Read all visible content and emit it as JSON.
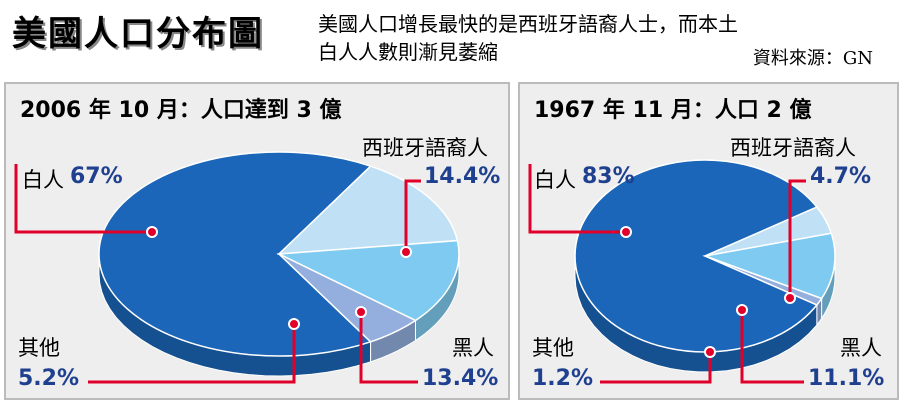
{
  "header": {
    "title": "美國人口分布圖",
    "subtitle_line1": "美國人口增長最快的是西班牙語裔人士，而本土",
    "subtitle_line2": "白人人數則漸見萎縮",
    "source": "資料來源：GN"
  },
  "colors": {
    "white": "#1b66b8",
    "hispanic": "#bfe0f5",
    "black": "#7fcaf0",
    "other": "#94aede",
    "leader": "#e0002a",
    "percent_text": "#1f3f8f"
  },
  "chart_data": [
    {
      "type": "pie",
      "title": "2006 年 10 月：人口達到 3 億",
      "slices": [
        {
          "name": "白人",
          "value": 67,
          "label": "67%"
        },
        {
          "name": "西班牙語裔人",
          "value": 14.4,
          "label": "14.4%"
        },
        {
          "name": "黑人",
          "value": 13.4,
          "label": "13.4%"
        },
        {
          "name": "其他",
          "value": 5.2,
          "label": "5.2%"
        }
      ]
    },
    {
      "type": "pie",
      "title": "1967 年 11 月：人口 2 億",
      "slices": [
        {
          "name": "白人",
          "value": 83,
          "label": "83%"
        },
        {
          "name": "西班牙語裔人",
          "value": 4.7,
          "label": "4.7%"
        },
        {
          "name": "黑人",
          "value": 11.1,
          "label": "11.1%"
        },
        {
          "name": "其他",
          "value": 1.2,
          "label": "1.2%"
        }
      ]
    }
  ]
}
